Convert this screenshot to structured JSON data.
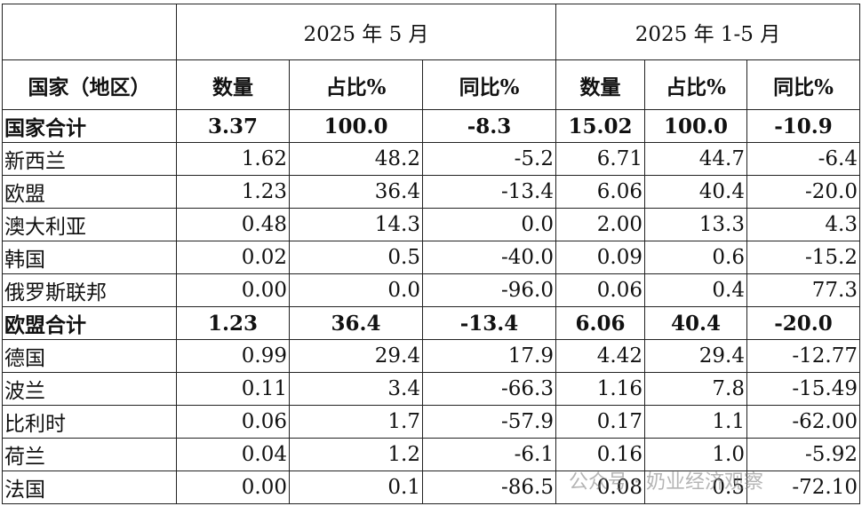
{
  "table": {
    "header": {
      "country": "国家（地区）",
      "groups": [
        "2025 年 5 月",
        "2025 年 1-5 月"
      ],
      "columns": [
        "数量",
        "占比%",
        "同比%",
        "数量",
        "占比%",
        "同比%"
      ]
    },
    "rows": [
      {
        "cells": [
          "国家合计",
          "3.37",
          "100.0",
          "-8.3",
          "15.02",
          "100.0",
          "-10.9"
        ],
        "bold": true
      },
      {
        "cells": [
          "新西兰",
          "1.62",
          "48.2",
          "-5.2",
          "6.71",
          "44.7",
          "-6.4"
        ]
      },
      {
        "cells": [
          "欧盟",
          "1.23",
          "36.4",
          "-13.4",
          "6.06",
          "40.4",
          "-20.0"
        ]
      },
      {
        "cells": [
          "澳大利亚",
          "0.48",
          "14.3",
          "0.0",
          "2.00",
          "13.3",
          "4.3"
        ]
      },
      {
        "cells": [
          "韩国",
          "0.02",
          "0.5",
          "-40.0",
          "0.09",
          "0.6",
          "-15.2"
        ]
      },
      {
        "cells": [
          "俄罗斯联邦",
          "0.00",
          "0.0",
          "-96.0",
          "0.06",
          "0.4",
          "77.3"
        ]
      },
      {
        "cells": [
          "欧盟合计",
          "1.23",
          "36.4",
          "-13.4",
          "6.06",
          "40.4",
          "-20.0"
        ],
        "bold": true
      },
      {
        "cells": [
          "德国",
          "0.99",
          "29.4",
          "17.9",
          "4.42",
          "29.4",
          "-12.77"
        ]
      },
      {
        "cells": [
          "波兰",
          "0.11",
          "3.4",
          "-66.3",
          "1.16",
          "7.8",
          "-15.49"
        ]
      },
      {
        "cells": [
          "比利时",
          "0.06",
          "1.7",
          "-57.9",
          "0.17",
          "1.1",
          "-62.00"
        ]
      },
      {
        "cells": [
          "荷兰",
          "0.04",
          "1.2",
          "-6.1",
          "0.16",
          "1.0",
          "-5.92"
        ]
      },
      {
        "cells": [
          "法国",
          "0.00",
          "0.1",
          "-86.5",
          "0.08",
          "0.5",
          "-72.10"
        ]
      }
    ]
  },
  "watermark": "公众号 · 奶业经济观察"
}
